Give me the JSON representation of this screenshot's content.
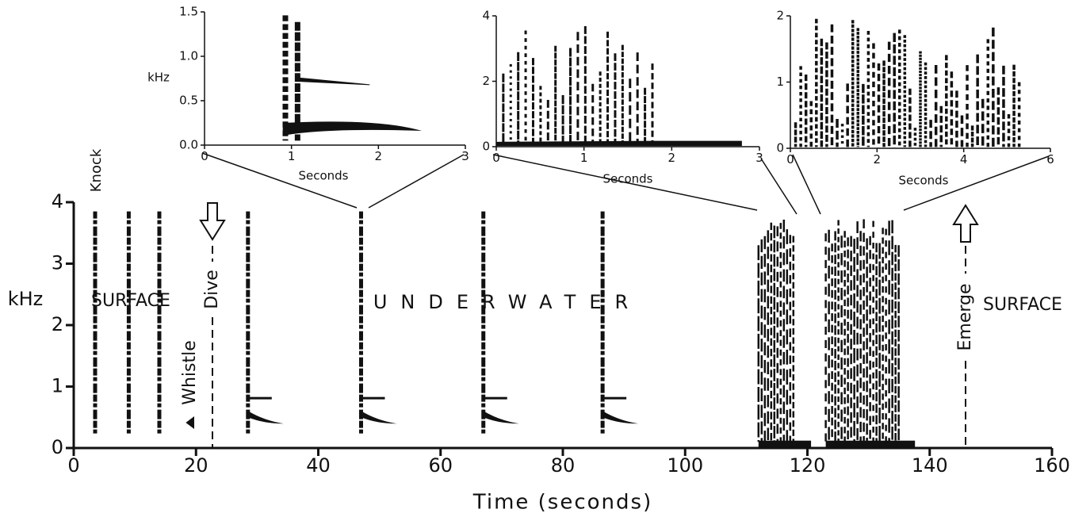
{
  "chart_data": [
    {
      "type": "spectrogram",
      "xlabel": "Time  (seconds)",
      "ylabel": "kHz",
      "xlim": [
        0,
        160
      ],
      "xticks": [
        0,
        20,
        40,
        60,
        80,
        100,
        120,
        140,
        160
      ],
      "ylim": [
        0,
        4
      ],
      "yticks": [
        0,
        1,
        2,
        3,
        4
      ],
      "call_times": [
        3.5,
        9,
        14,
        28.5,
        47,
        67,
        86.5
      ],
      "burst_ranges": [
        [
          112,
          118
        ],
        [
          123,
          135
        ]
      ],
      "annotations": [
        "Knock",
        "SURFACE",
        "Dive",
        "Whistle",
        "UNDERWATER",
        "Emerge",
        "SURFACE"
      ]
    },
    {
      "type": "spectrogram",
      "xlabel": "Seconds",
      "ylabel": "kHz",
      "xlim": [
        0,
        3
      ],
      "xticks": [
        0,
        1,
        2,
        3
      ],
      "ylim": [
        0,
        1.5
      ],
      "yticks": [
        {
          "value": 0,
          "label": "0.0"
        },
        0.5,
        {
          "value": 1,
          "label": "1.0"
        },
        1.5
      ]
    },
    {
      "type": "spectrogram",
      "xlabel": "Seconds",
      "xlim": [
        0,
        3
      ],
      "xticks": [
        0,
        1,
        2,
        3
      ],
      "ylim": [
        0,
        4
      ],
      "yticks": [
        0,
        2,
        4
      ]
    },
    {
      "type": "spectrogram",
      "xlabel": "Seconds",
      "xlim": [
        0,
        6
      ],
      "xticks": [
        0,
        2,
        4,
        6
      ],
      "ylim": [
        0,
        2
      ],
      "yticks": [
        0,
        1,
        2
      ]
    }
  ]
}
